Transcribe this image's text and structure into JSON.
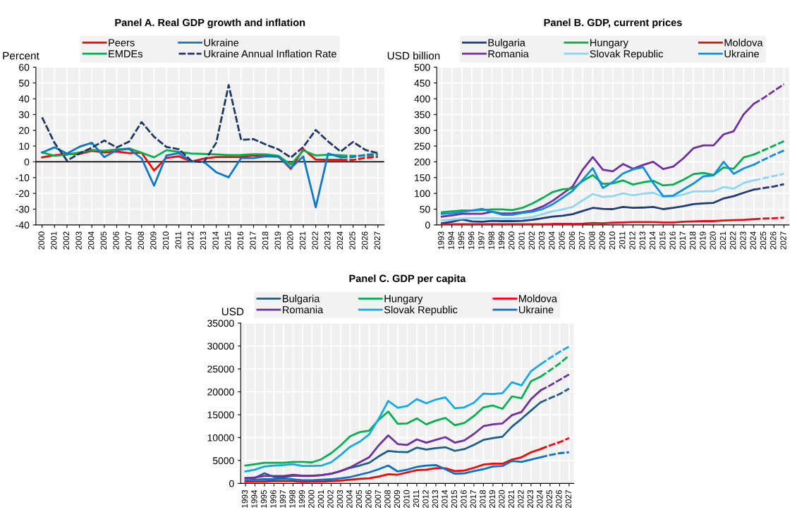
{
  "chart_data": [
    {
      "type": "line",
      "title": "Panel A. Real GDP growth and inflation",
      "ylabel": "Percent",
      "categories": [
        "2000",
        "2001",
        "2002",
        "2003",
        "2004",
        "2005",
        "2006",
        "2007",
        "2008",
        "2009",
        "2010",
        "2011",
        "2012",
        "2013",
        "2014",
        "2015",
        "2016",
        "2017",
        "2018",
        "2019",
        "2020",
        "2021",
        "2022",
        "2023",
        "2024",
        "2025",
        "2026",
        "2027"
      ],
      "ylim": [
        -40,
        60
      ],
      "yticks": [
        -40,
        -30,
        -20,
        -10,
        0,
        10,
        20,
        30,
        40,
        50,
        60
      ],
      "grid": true,
      "legend": "top",
      "ref_lines": [
        {
          "axis": "y",
          "value": 0,
          "color": "#000000"
        }
      ],
      "series": [
        {
          "name": "Peers",
          "color": "#ff0000",
          "line_style": "solid",
          "values": [
            2.8,
            4.2,
            5.0,
            5.0,
            7.0,
            6.0,
            6.5,
            5.5,
            5.8,
            -5.5,
            2.5,
            3.5,
            0.2,
            2.0,
            3.0,
            3.0,
            3.0,
            4.0,
            4.0,
            3.5,
            -4.5,
            8.0,
            1.5,
            1.2,
            1.2,
            null,
            null,
            null
          ]
        },
        {
          "name": "EMDEs",
          "color": "#00b050",
          "line_style": "solid",
          "values": [
            6.0,
            3.8,
            4.5,
            6.0,
            7.5,
            7.0,
            7.8,
            8.5,
            5.8,
            2.8,
            7.4,
            6.3,
            5.3,
            5.0,
            4.7,
            4.3,
            4.4,
            4.8,
            4.7,
            3.8,
            -1.8,
            7.2,
            4.0,
            4.5,
            4.2,
            null,
            null,
            null
          ]
        },
        {
          "name": "Ukraine",
          "color": "#0b78cc",
          "line_style": "solid",
          "values": [
            5.9,
            9.2,
            5.2,
            9.5,
            12.1,
            3.0,
            7.4,
            8.2,
            2.2,
            -15.1,
            4.1,
            5.5,
            0.2,
            0.0,
            -6.6,
            -9.8,
            2.4,
            2.4,
            3.5,
            3.2,
            -3.8,
            3.4,
            -28.8,
            5.3,
            2.9,
            null,
            null,
            null
          ]
        },
        {
          "name": "Ukraine Annual Inflation Rate",
          "color": "#1f3864",
          "line_style": "dashed",
          "values": [
            28.2,
            12.0,
            0.8,
            5.2,
            9.0,
            13.5,
            9.1,
            12.8,
            25.2,
            15.9,
            9.4,
            8.0,
            0.6,
            -0.3,
            12.1,
            48.7,
            13.9,
            14.4,
            10.9,
            7.9,
            2.7,
            9.4,
            20.2,
            12.9,
            6.5,
            12.6,
            7.5,
            5.5
          ]
        },
        {
          "color": "#ff0000",
          "line_style": "dashed",
          "values": [
            null,
            null,
            null,
            null,
            null,
            null,
            null,
            null,
            null,
            null,
            null,
            null,
            null,
            null,
            null,
            null,
            null,
            null,
            null,
            null,
            null,
            null,
            null,
            null,
            1.2,
            1.2,
            2.5,
            3.2
          ]
        },
        {
          "color": "#00b050",
          "line_style": "dashed",
          "values": [
            null,
            null,
            null,
            null,
            null,
            null,
            null,
            null,
            null,
            null,
            null,
            null,
            null,
            null,
            null,
            null,
            null,
            null,
            null,
            null,
            null,
            null,
            null,
            null,
            4.2,
            3.8,
            3.9,
            4.0
          ]
        },
        {
          "color": "#0b78cc",
          "line_style": "dashed",
          "values": [
            null,
            null,
            null,
            null,
            null,
            null,
            null,
            null,
            null,
            null,
            null,
            null,
            null,
            null,
            null,
            null,
            null,
            null,
            null,
            null,
            null,
            null,
            null,
            null,
            2.9,
            3.0,
            4.5,
            5.0
          ]
        }
      ]
    },
    {
      "type": "line",
      "title": "Panel B. GDP, current prices",
      "ylabel": "USD billion",
      "categories": [
        "1993",
        "1994",
        "1995",
        "1996",
        "1997",
        "1998",
        "1999",
        "2000",
        "2001",
        "2002",
        "2003",
        "2004",
        "2005",
        "2006",
        "2007",
        "2008",
        "2009",
        "2010",
        "2011",
        "2012",
        "2013",
        "2014",
        "2015",
        "2016",
        "2017",
        "2018",
        "2019",
        "2020",
        "2021",
        "2022",
        "2023",
        "2024",
        "2025",
        "2026",
        "2027"
      ],
      "ylim": [
        0,
        500
      ],
      "yticks": [
        0,
        50,
        100,
        150,
        200,
        250,
        300,
        350,
        400,
        450,
        500
      ],
      "grid": true,
      "legend": "top",
      "series": [
        {
          "name": "Bulgaria",
          "color": "#1f3c78",
          "line_style": "solid",
          "values": [
            5,
            10,
            17,
            11,
            10,
            13,
            12,
            12,
            13,
            16,
            21,
            26,
            29,
            34,
            44,
            54,
            51,
            50,
            57,
            54,
            55,
            57,
            50,
            54,
            59,
            66,
            68,
            70,
            84,
            91,
            102,
            112,
            null,
            null,
            null
          ]
        },
        {
          "name": "Romania",
          "color": "#7030a0",
          "line_style": "solid",
          "values": [
            26,
            30,
            35,
            35,
            35,
            42,
            36,
            37,
            40,
            46,
            58,
            76,
            99,
            122,
            175,
            215,
            175,
            170,
            193,
            178,
            190,
            200,
            177,
            185,
            211,
            243,
            252,
            252,
            287,
            297,
            351,
            384,
            null,
            null,
            null
          ]
        },
        {
          "name": "Hungary",
          "color": "#00b050",
          "line_style": "solid",
          "values": [
            40,
            43,
            46,
            46,
            47,
            49,
            49,
            47,
            54,
            68,
            85,
            104,
            113,
            115,
            139,
            158,
            130,
            132,
            141,
            128,
            135,
            140,
            125,
            128,
            143,
            161,
            165,
            158,
            182,
            178,
            214,
            223,
            null,
            null,
            null
          ]
        },
        {
          "name": "Slovak Republic",
          "color": "#8fd6f0",
          "line_style": "solid",
          "values": [
            14,
            17,
            20,
            21,
            21,
            22,
            20,
            20,
            21,
            25,
            34,
            43,
            49,
            57,
            78,
            98,
            89,
            91,
            100,
            94,
            99,
            102,
            89,
            90,
            96,
            106,
            106,
            107,
            120,
            115,
            133,
            141,
            null,
            null,
            null
          ]
        },
        {
          "name": "Moldova",
          "color": "#e0101a",
          "line_style": "solid",
          "values": [
            2,
            2,
            2,
            2,
            2,
            2,
            2,
            2,
            2,
            2,
            2,
            3,
            3,
            3,
            4,
            6,
            5,
            7,
            8,
            9,
            9,
            9,
            8,
            8,
            10,
            11,
            12,
            12,
            14,
            15,
            16,
            18,
            null,
            null,
            null
          ]
        },
        {
          "name": "Ukraine",
          "color": "#0b8fe0",
          "line_style": "solid",
          "values": [
            35,
            37,
            41,
            46,
            51,
            42,
            32,
            32,
            38,
            42,
            50,
            65,
            86,
            108,
            143,
            180,
            117,
            136,
            163,
            176,
            183,
            133,
            91,
            93,
            112,
            131,
            154,
            157,
            200,
            162,
            179,
            191,
            null,
            null,
            null
          ]
        },
        {
          "color": "#1f3c78",
          "line_style": "dashed",
          "values": [
            null,
            null,
            null,
            null,
            null,
            null,
            null,
            null,
            null,
            null,
            null,
            null,
            null,
            null,
            null,
            null,
            null,
            null,
            null,
            null,
            null,
            null,
            null,
            null,
            null,
            null,
            null,
            null,
            null,
            null,
            null,
            112,
            117,
            122,
            129
          ]
        },
        {
          "color": "#7030a0",
          "line_style": "dashed",
          "values": [
            null,
            null,
            null,
            null,
            null,
            null,
            null,
            null,
            null,
            null,
            null,
            null,
            null,
            null,
            null,
            null,
            null,
            null,
            null,
            null,
            null,
            null,
            null,
            null,
            null,
            null,
            null,
            null,
            null,
            null,
            null,
            384,
            403,
            425,
            446
          ]
        },
        {
          "color": "#00b050",
          "line_style": "dashed",
          "values": [
            null,
            null,
            null,
            null,
            null,
            null,
            null,
            null,
            null,
            null,
            null,
            null,
            null,
            null,
            null,
            null,
            null,
            null,
            null,
            null,
            null,
            null,
            null,
            null,
            null,
            null,
            null,
            null,
            null,
            null,
            null,
            223,
            237,
            251,
            266
          ]
        },
        {
          "color": "#8fd6f0",
          "line_style": "dashed",
          "values": [
            null,
            null,
            null,
            null,
            null,
            null,
            null,
            null,
            null,
            null,
            null,
            null,
            null,
            null,
            null,
            null,
            null,
            null,
            null,
            null,
            null,
            null,
            null,
            null,
            null,
            null,
            null,
            null,
            null,
            null,
            null,
            141,
            148,
            155,
            162
          ]
        },
        {
          "color": "#e0101a",
          "line_style": "dashed",
          "values": [
            null,
            null,
            null,
            null,
            null,
            null,
            null,
            null,
            null,
            null,
            null,
            null,
            null,
            null,
            null,
            null,
            null,
            null,
            null,
            null,
            null,
            null,
            null,
            null,
            null,
            null,
            null,
            null,
            null,
            null,
            null,
            18,
            20,
            21,
            23
          ]
        },
        {
          "color": "#0b8fe0",
          "line_style": "dashed",
          "values": [
            null,
            null,
            null,
            null,
            null,
            null,
            null,
            null,
            null,
            null,
            null,
            null,
            null,
            null,
            null,
            null,
            null,
            null,
            null,
            null,
            null,
            null,
            null,
            null,
            null,
            null,
            null,
            null,
            null,
            null,
            null,
            191,
            207,
            222,
            236
          ]
        }
      ]
    },
    {
      "type": "line",
      "title": "Panel C. GDP per capita",
      "ylabel": "USD",
      "categories": [
        "1993",
        "1994",
        "1995",
        "1996",
        "1997",
        "1998",
        "1999",
        "2000",
        "2001",
        "2002",
        "2003",
        "2004",
        "2005",
        "2006",
        "2007",
        "2008",
        "2009",
        "2010",
        "2011",
        "2012",
        "2013",
        "2014",
        "2015",
        "2016",
        "2017",
        "2018",
        "2019",
        "2020",
        "2021",
        "2022",
        "2023",
        "2024",
        "2025",
        "2026",
        "2027"
      ],
      "ylim": [
        0,
        35000
      ],
      "yticks": [
        0,
        5000,
        10000,
        15000,
        20000,
        25000,
        30000,
        35000
      ],
      "grid": true,
      "legend": "top",
      "series": [
        {
          "name": "Bulgaria",
          "color": "#1f5f8b",
          "line_style": "solid",
          "values": [
            1200,
            1200,
            2200,
            1400,
            1300,
            1700,
            1600,
            1600,
            1800,
            2100,
            2700,
            3400,
            3900,
            4500,
            5900,
            7100,
            6900,
            6800,
            7800,
            7400,
            7700,
            7900,
            7100,
            7500,
            8400,
            9500,
            9900,
            10200,
            12400,
            14100,
            15900,
            17700,
            null,
            null,
            null
          ]
        },
        {
          "name": "Romania",
          "color": "#7030a0",
          "line_style": "solid",
          "values": [
            1100,
            1300,
            1600,
            1600,
            1600,
            1900,
            1700,
            1700,
            1800,
            2100,
            2700,
            3500,
            4600,
            5700,
            8300,
            10500,
            8600,
            8400,
            9600,
            8900,
            9500,
            10100,
            8900,
            9400,
            10800,
            12500,
            12900,
            13100,
            14900,
            15600,
            18400,
            20300,
            null,
            null,
            null
          ]
        },
        {
          "name": "Hungary",
          "color": "#00b050",
          "line_style": "solid",
          "values": [
            3900,
            4200,
            4500,
            4500,
            4500,
            4700,
            4700,
            4600,
            5300,
            6600,
            8300,
            10300,
            11200,
            11500,
            13900,
            15700,
            13000,
            13100,
            14200,
            12900,
            13700,
            14300,
            12700,
            13200,
            14700,
            16600,
            17000,
            16300,
            19000,
            18600,
            22300,
            23300,
            null,
            null,
            null
          ]
        },
        {
          "name": "Slovak Republic",
          "color": "#14aae8",
          "line_style": "solid",
          "values": [
            2600,
            3000,
            3700,
            3900,
            4000,
            4200,
            3800,
            3800,
            3900,
            4600,
            6200,
            8000,
            9100,
            10700,
            14100,
            18000,
            16500,
            16900,
            18400,
            17500,
            18300,
            18800,
            16400,
            16600,
            17600,
            19600,
            19500,
            19700,
            22100,
            21400,
            24500,
            26000,
            null,
            null,
            null
          ]
        },
        {
          "name": "Moldova",
          "color": "#ff0000",
          "line_style": "solid",
          "values": [
            300,
            400,
            400,
            500,
            500,
            500,
            300,
            400,
            400,
            500,
            600,
            800,
            1000,
            1100,
            1500,
            2000,
            1900,
            2400,
            2900,
            3000,
            3300,
            3300,
            2700,
            2800,
            3400,
            4100,
            4300,
            4300,
            5200,
            5700,
            6800,
            7500,
            null,
            null,
            null
          ]
        },
        {
          "name": "Ukraine",
          "color": "#0b70c8",
          "line_style": "solid",
          "values": [
            700,
            800,
            900,
            900,
            1000,
            900,
            700,
            700,
            800,
            900,
            1100,
            1400,
            1900,
            2400,
            3100,
            3900,
            2600,
            3000,
            3600,
            3900,
            4000,
            3100,
            2100,
            2200,
            2700,
            3100,
            3700,
            3800,
            4900,
            4700,
            5200,
            5700,
            null,
            null,
            null
          ]
        },
        {
          "color": "#1f5f8b",
          "line_style": "dashed",
          "values": [
            null,
            null,
            null,
            null,
            null,
            null,
            null,
            null,
            null,
            null,
            null,
            null,
            null,
            null,
            null,
            null,
            null,
            null,
            null,
            null,
            null,
            null,
            null,
            null,
            null,
            null,
            null,
            null,
            null,
            null,
            null,
            17700,
            18600,
            19500,
            20700
          ]
        },
        {
          "color": "#7030a0",
          "line_style": "dashed",
          "values": [
            null,
            null,
            null,
            null,
            null,
            null,
            null,
            null,
            null,
            null,
            null,
            null,
            null,
            null,
            null,
            null,
            null,
            null,
            null,
            null,
            null,
            null,
            null,
            null,
            null,
            null,
            null,
            null,
            null,
            null,
            null,
            20300,
            21400,
            22600,
            23800
          ]
        },
        {
          "color": "#00b050",
          "line_style": "dashed",
          "values": [
            null,
            null,
            null,
            null,
            null,
            null,
            null,
            null,
            null,
            null,
            null,
            null,
            null,
            null,
            null,
            null,
            null,
            null,
            null,
            null,
            null,
            null,
            null,
            null,
            null,
            null,
            null,
            null,
            null,
            null,
            null,
            23300,
            24700,
            26200,
            27900
          ]
        },
        {
          "color": "#14aae8",
          "line_style": "dashed",
          "values": [
            null,
            null,
            null,
            null,
            null,
            null,
            null,
            null,
            null,
            null,
            null,
            null,
            null,
            null,
            null,
            null,
            null,
            null,
            null,
            null,
            null,
            null,
            null,
            null,
            null,
            null,
            null,
            null,
            null,
            null,
            null,
            26000,
            27400,
            28700,
            29900
          ]
        },
        {
          "color": "#ff0000",
          "line_style": "dashed",
          "values": [
            null,
            null,
            null,
            null,
            null,
            null,
            null,
            null,
            null,
            null,
            null,
            null,
            null,
            null,
            null,
            null,
            null,
            null,
            null,
            null,
            null,
            null,
            null,
            null,
            null,
            null,
            null,
            null,
            null,
            null,
            null,
            7500,
            8300,
            9000,
            9900
          ]
        },
        {
          "color": "#0b70c8",
          "line_style": "dashed",
          "values": [
            null,
            null,
            null,
            null,
            null,
            null,
            null,
            null,
            null,
            null,
            null,
            null,
            null,
            null,
            null,
            null,
            null,
            null,
            null,
            null,
            null,
            null,
            null,
            null,
            null,
            null,
            null,
            null,
            null,
            null,
            null,
            5700,
            6200,
            6600,
            6800
          ]
        }
      ]
    }
  ]
}
